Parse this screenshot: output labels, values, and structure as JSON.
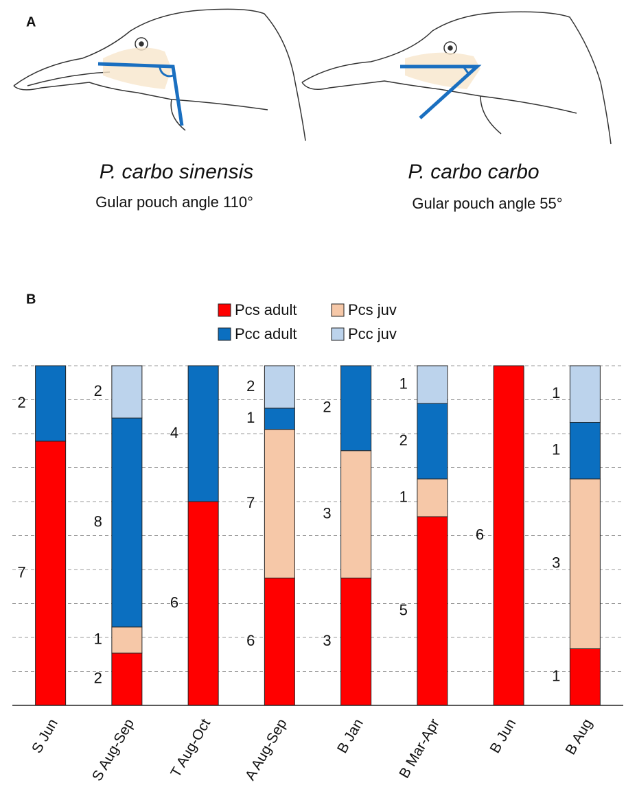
{
  "panel_a": {
    "label": "A",
    "birds": [
      {
        "name": "P. carbo sinensis",
        "caption": "Gular pouch angle 110°"
      },
      {
        "name": "P. carbo carbo",
        "caption": "Gular pouch angle 55°"
      }
    ]
  },
  "chart_data": {
    "type": "bar",
    "stack": "percent",
    "panel_label": "B",
    "categories": [
      "S Jun",
      "S Aug-Sep",
      "T Aug-Oct",
      "A Aug-Sep",
      "B Jan",
      "B Mar-Apr",
      "B Jun",
      "B Aug"
    ],
    "series": [
      {
        "name": "Pcs adult",
        "color": "#ff0000",
        "values": [
          7,
          2,
          6,
          6,
          3,
          5,
          6,
          1
        ]
      },
      {
        "name": "Pcs juv",
        "color": "#f6c8a8",
        "values": [
          null,
          1,
          null,
          7,
          3,
          1,
          null,
          3
        ]
      },
      {
        "name": "Pcc adult",
        "color": "#0b6fc0",
        "values": [
          2,
          8,
          4,
          1,
          2,
          2,
          null,
          1
        ]
      },
      {
        "name": "Pcc juv",
        "color": "#bcd3ec",
        "values": [
          null,
          2,
          null,
          2,
          null,
          1,
          null,
          1
        ]
      }
    ],
    "ylim": [
      0,
      100
    ],
    "grid": [
      10,
      20,
      30,
      40,
      50,
      60,
      70,
      80,
      90,
      100
    ]
  }
}
